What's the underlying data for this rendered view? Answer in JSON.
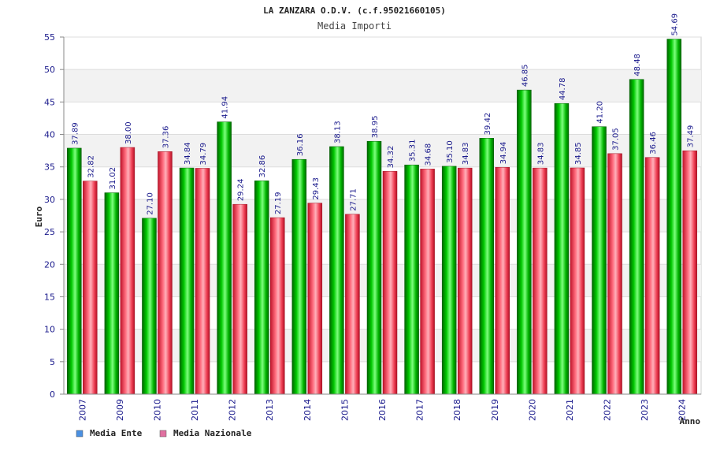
{
  "chart_data": {
    "type": "bar",
    "title": "LA ZANZARA O.D.V. (c.f.95021660105)",
    "subtitle": "Media Importi",
    "xlabel": "Anno",
    "ylabel": "Euro",
    "ylim": [
      0,
      55
    ],
    "yticks": [
      "0",
      "5",
      "10",
      "15",
      "20",
      "25",
      "30",
      "35",
      "40",
      "45",
      "50",
      "55"
    ],
    "grid": true,
    "legend_position": "bottom-left",
    "categories": [
      "2007",
      "2009",
      "2010",
      "2011",
      "2012",
      "2013",
      "2014",
      "2015",
      "2016",
      "2017",
      "2018",
      "2019",
      "2020",
      "2021",
      "2022",
      "2023",
      "2024"
    ],
    "series": [
      {
        "name": "Media Ente",
        "color": "#00b000",
        "values": [
          37.89,
          31.02,
          27.1,
          34.84,
          41.94,
          32.86,
          36.16,
          38.13,
          38.95,
          35.31,
          35.1,
          39.42,
          46.85,
          44.78,
          41.2,
          48.48,
          54.69
        ],
        "labels": [
          "37.89",
          "31.02",
          "27.10",
          "34.84",
          "41.94",
          "32.86",
          "36.16",
          "38.13",
          "38.95",
          "35.31",
          "35.10",
          "39.42",
          "46.85",
          "44.78",
          "41.20",
          "48.48",
          "54.69"
        ]
      },
      {
        "name": "Media Nazionale",
        "color": "#e8324a",
        "values": [
          32.82,
          38.0,
          37.36,
          34.79,
          29.24,
          27.19,
          29.43,
          27.71,
          34.32,
          34.68,
          34.83,
          34.94,
          34.83,
          34.85,
          37.05,
          36.46,
          37.49
        ],
        "labels": [
          "32.82",
          "38.00",
          "37.36",
          "34.79",
          "29.24",
          "27.19",
          "29.43",
          "27.71",
          "34.32",
          "34.68",
          "34.83",
          "34.94",
          "34.83",
          "34.85",
          "37.05",
          "36.46",
          "37.49"
        ]
      }
    ],
    "legend": [
      {
        "label": "Media Ente",
        "swatch_color": "#4a90e2"
      },
      {
        "label": "Media Nazionale",
        "swatch_color": "#e070a0"
      }
    ]
  }
}
